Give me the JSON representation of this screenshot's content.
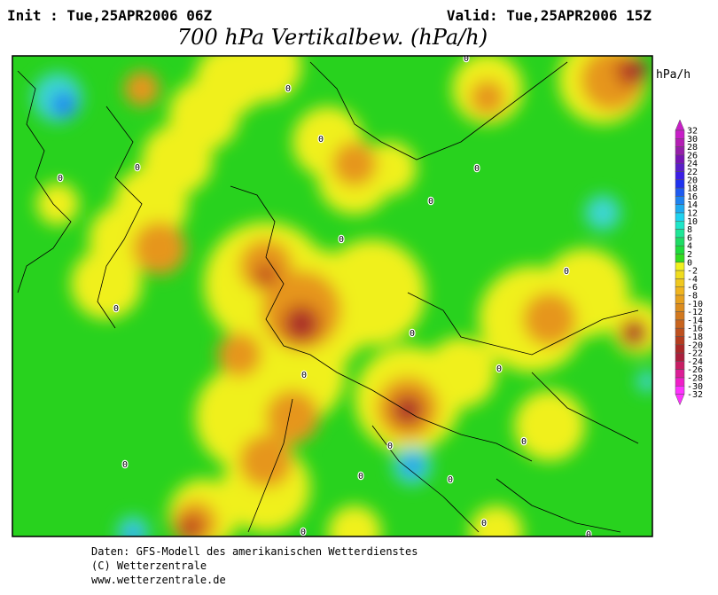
{
  "header": {
    "init": "Init : Tue,25APR2006 06Z",
    "valid": "Valid: Tue,25APR2006 15Z",
    "title": "700 hPa Vertikalbew. (hPa/h)"
  },
  "map": {
    "contour_labels": [
      "0",
      "0",
      "0",
      "0",
      "0",
      "0",
      "0",
      "0",
      "0",
      "0",
      "0",
      "0",
      "0",
      "0",
      "0",
      "0",
      "0",
      "0",
      "0",
      "0",
      "0"
    ]
  },
  "colorbar": {
    "unit": "hPa/h",
    "levels": [
      32,
      30,
      28,
      26,
      24,
      22,
      20,
      18,
      16,
      14,
      12,
      10,
      8,
      6,
      4,
      2,
      0,
      -2,
      -4,
      -6,
      -8,
      -10,
      -12,
      -14,
      -16,
      -18,
      -20,
      -22,
      -24,
      -26,
      -28,
      -30,
      -32
    ],
    "colors": [
      "#c81ec8",
      "#b41eb4",
      "#961eaa",
      "#7814b4",
      "#5a1ec8",
      "#3c1ee6",
      "#1e32f0",
      "#1e5af0",
      "#1e82f0",
      "#1eaaf0",
      "#1ed2f0",
      "#1ee6c8",
      "#1ee696",
      "#1edc64",
      "#1edc3c",
      "#32dc1e",
      "#f0f01e",
      "#f0dc1e",
      "#f0c81e",
      "#f0b41e",
      "#e6a01e",
      "#dc8c1e",
      "#d2781e",
      "#c8641e",
      "#be501e",
      "#b43c1e",
      "#aa2828",
      "#aa1e3c",
      "#c81e64",
      "#dc1e96",
      "#f01ec8",
      "#ff32ff"
    ]
  },
  "footer": {
    "lines": [
      "Daten: GFS-Modell des amerikanischen Wetterdienstes",
      "(C) Wetterzentrale",
      "www.wetterzentrale.de"
    ]
  }
}
